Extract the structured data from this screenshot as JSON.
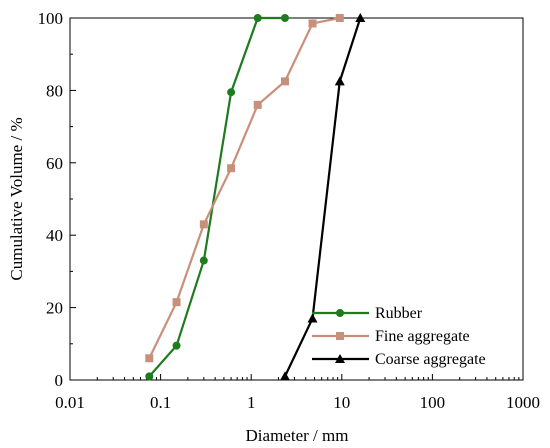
{
  "chart_data": {
    "type": "line",
    "xscale": "log",
    "xlim": [
      0.01,
      1000
    ],
    "ylim": [
      0,
      100
    ],
    "xticks": [
      0.01,
      0.1,
      1,
      10,
      100,
      1000
    ],
    "xtick_labels": [
      "0.01",
      "0.1",
      "1",
      "10",
      "100",
      "1000"
    ],
    "yticks": [
      0,
      20,
      40,
      60,
      80,
      100
    ],
    "ytick_labels": [
      "0",
      "20",
      "40",
      "60",
      "80",
      "100"
    ],
    "xlabel": "Diameter / mm",
    "ylabel": "Cumulative Volume  / %",
    "grid": false,
    "legend_position": "bottom-right",
    "series": [
      {
        "name": "Rubber",
        "color": "#1e7b1e",
        "marker": "circle",
        "x": [
          0.075,
          0.15,
          0.3,
          0.6,
          1.18,
          2.36
        ],
        "y": [
          1,
          9.5,
          33,
          79.5,
          100,
          100
        ]
      },
      {
        "name": "Fine aggregate",
        "color": "#c8907a",
        "marker": "square",
        "x": [
          0.075,
          0.15,
          0.3,
          0.6,
          1.18,
          2.36,
          4.75,
          9.5
        ],
        "y": [
          6,
          21.5,
          43,
          58.5,
          76,
          82.5,
          98.5,
          100
        ]
      },
      {
        "name": "Coarse aggregate",
        "color": "#000000",
        "marker": "triangle",
        "x": [
          2.36,
          4.75,
          9.5,
          16
        ],
        "y": [
          1,
          17,
          82.5,
          100
        ]
      }
    ]
  }
}
